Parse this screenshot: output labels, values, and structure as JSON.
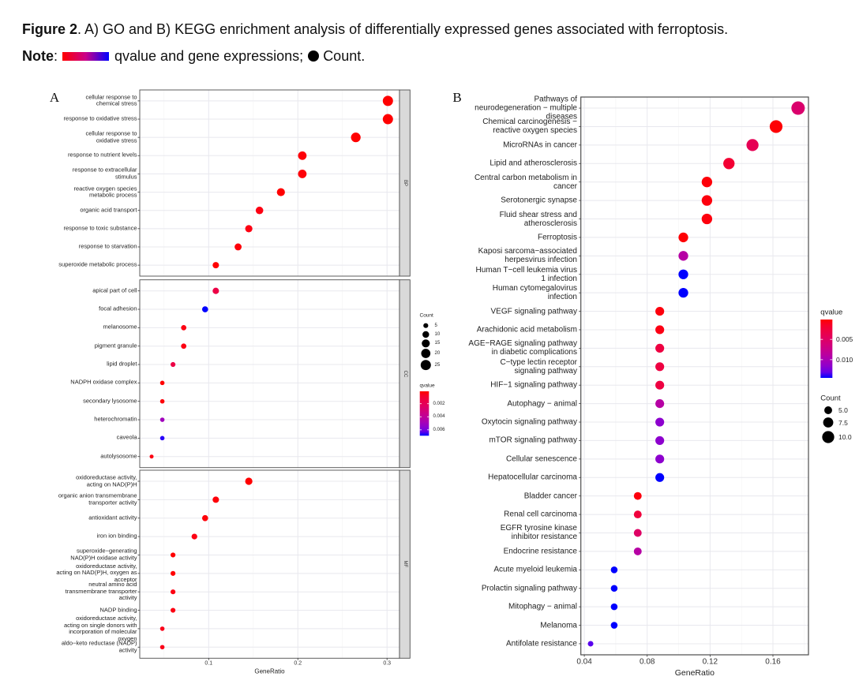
{
  "caption": {
    "figure_label": "Figure 2",
    "title_text": ". A) GO and B) KEGG enrichment analysis of differentially expressed genes associated with ferroptosis.",
    "note_label": "Note",
    "note_colon": ":",
    "note_color_text": "qvalue and gene expressions;",
    "note_count_text": "Count.",
    "note_gradient": [
      "#ff0000",
      "#0000ff"
    ]
  },
  "chart_data": [
    {
      "panel_label": "A",
      "type": "scatter",
      "subtype": "dot plot (faceted)",
      "title": "",
      "xlabel": "GeneRatio",
      "ylabel": "",
      "xlim": [
        0.0227,
        0.314
      ],
      "xticks": [
        0.1,
        0.2,
        0.3
      ],
      "xtick_labels": [
        "0.1",
        "0.2",
        "0.3"
      ],
      "grid": true,
      "facets": [
        {
          "name": "BP",
          "terms": [
            {
              "label": "cellular response to\nchemical stress",
              "gene_ratio": 0.301,
              "count": 25,
              "qvalue": 0.0001
            },
            {
              "label": "response to oxidative stress",
              "gene_ratio": 0.301,
              "count": 25,
              "qvalue": 0.0001
            },
            {
              "label": "cellular response to\noxidative stress",
              "gene_ratio": 0.265,
              "count": 22,
              "qvalue": 0.0001
            },
            {
              "label": "response to nutrient levels",
              "gene_ratio": 0.205,
              "count": 17,
              "qvalue": 0.0002
            },
            {
              "label": "response to extracellular\nstimulus",
              "gene_ratio": 0.205,
              "count": 17,
              "qvalue": 0.0002
            },
            {
              "label": "reactive oxygen species\nmetabolic process",
              "gene_ratio": 0.181,
              "count": 15,
              "qvalue": 0.0001
            },
            {
              "label": "organic acid transport",
              "gene_ratio": 0.157,
              "count": 13,
              "qvalue": 0.0003
            },
            {
              "label": "response to toxic substance",
              "gene_ratio": 0.145,
              "count": 12,
              "qvalue": 0.0003
            },
            {
              "label": "response to starvation",
              "gene_ratio": 0.133,
              "count": 11,
              "qvalue": 0.0002
            },
            {
              "label": "superoxide metabolic process",
              "gene_ratio": 0.108,
              "count": 9,
              "qvalue": 0.0001
            }
          ]
        },
        {
          "name": "CC",
          "terms": [
            {
              "label": "apical part of cell",
              "gene_ratio": 0.108,
              "count": 9,
              "qvalue": 0.0015
            },
            {
              "label": "focal adhesion",
              "gene_ratio": 0.096,
              "count": 8,
              "qvalue": 0.0069
            },
            {
              "label": "melanosome",
              "gene_ratio": 0.072,
              "count": 6,
              "qvalue": 0.0003
            },
            {
              "label": "pigment granule",
              "gene_ratio": 0.072,
              "count": 6,
              "qvalue": 0.0003
            },
            {
              "label": "lipid droplet",
              "gene_ratio": 0.06,
              "count": 5,
              "qvalue": 0.0015
            },
            {
              "label": "NADPH oxidase complex",
              "gene_ratio": 0.048,
              "count": 4,
              "qvalue": 0.0001
            },
            {
              "label": "secondary lysosome",
              "gene_ratio": 0.048,
              "count": 4,
              "qvalue": 0.0002
            },
            {
              "label": "heterochromatin",
              "gene_ratio": 0.048,
              "count": 4,
              "qvalue": 0.005
            },
            {
              "label": "caveola",
              "gene_ratio": 0.048,
              "count": 4,
              "qvalue": 0.0068
            },
            {
              "label": "autolysosome",
              "gene_ratio": 0.036,
              "count": 3,
              "qvalue": 0.0003
            }
          ]
        },
        {
          "name": "MF",
          "terms": [
            {
              "label": "oxidoreductase activity,\nacting on NAD(P)H",
              "gene_ratio": 0.145,
              "count": 12,
              "qvalue": 0.0001
            },
            {
              "label": "organic anion transmembrane\ntransporter activity",
              "gene_ratio": 0.108,
              "count": 9,
              "qvalue": 0.0002
            },
            {
              "label": "antioxidant activity",
              "gene_ratio": 0.096,
              "count": 8,
              "qvalue": 0.0002
            },
            {
              "label": "iron ion binding",
              "gene_ratio": 0.084,
              "count": 7,
              "qvalue": 0.0003
            },
            {
              "label": "superoxide−generating\nNAD(P)H oxidase activity",
              "gene_ratio": 0.06,
              "count": 5,
              "qvalue": 0.0001
            },
            {
              "label": "oxidoreductase activity,\nacting on NAD(P)H, oxygen as\nacceptor",
              "gene_ratio": 0.06,
              "count": 5,
              "qvalue": 0.0001
            },
            {
              "label": "neutral amino acid\ntransmembrane transporter\nactivity",
              "gene_ratio": 0.06,
              "count": 5,
              "qvalue": 0.0003
            },
            {
              "label": "NADP binding",
              "gene_ratio": 0.06,
              "count": 5,
              "qvalue": 0.0003
            },
            {
              "label": "oxidoreductase activity,\nacting on single donors with\nincorporation of molecular\noxygen",
              "gene_ratio": 0.048,
              "count": 4,
              "qvalue": 0.0004
            },
            {
              "label": "aldo−keto reductase (NADP)\nactivity",
              "gene_ratio": 0.048,
              "count": 4,
              "qvalue": 0.0004
            }
          ]
        }
      ],
      "legend": {
        "position": "right",
        "size": {
          "title": "Count",
          "breaks": [
            5,
            10,
            15,
            20,
            25
          ],
          "labels": [
            "5",
            "10",
            "15",
            "20",
            "25"
          ]
        },
        "color": {
          "title": "qvalue",
          "range": [
            0.0001,
            0.0069
          ],
          "ticks": [
            0.002,
            0.004,
            0.006
          ],
          "tick_labels": [
            "0.002",
            "0.004",
            "0.006"
          ],
          "low_color": "#ff0000",
          "high_color": "#0000ff"
        }
      }
    },
    {
      "panel_label": "B",
      "type": "scatter",
      "subtype": "dot plot",
      "title": "",
      "xlabel": "GeneRatio",
      "ylabel": "",
      "xlim": [
        0.0378,
        0.1826
      ],
      "xticks": [
        0.04,
        0.08,
        0.12,
        0.16
      ],
      "xtick_labels": [
        "0.04",
        "0.08",
        "0.12",
        "0.16"
      ],
      "grid": true,
      "terms": [
        {
          "label": "Pathways of\nneurodegeneration − multiple\ndiseases",
          "gene_ratio": 0.176,
          "count": 12,
          "qvalue": 0.0055
        },
        {
          "label": "Chemical carcinogenesis −\nreactive oxygen species",
          "gene_ratio": 0.162,
          "count": 11,
          "qvalue": 0.0002
        },
        {
          "label": "MicroRNAs in cancer",
          "gene_ratio": 0.147,
          "count": 10,
          "qvalue": 0.004
        },
        {
          "label": "Lipid and atherosclerosis",
          "gene_ratio": 0.132,
          "count": 9,
          "qvalue": 0.002
        },
        {
          "label": "Central carbon metabolism in\ncancer",
          "gene_ratio": 0.118,
          "count": 8,
          "qvalue": 0.0003
        },
        {
          "label": "Serotonergic synapse",
          "gene_ratio": 0.118,
          "count": 8,
          "qvalue": 0.0004
        },
        {
          "label": "Fluid shear stress and\natherosclerosis",
          "gene_ratio": 0.118,
          "count": 8,
          "qvalue": 0.0004
        },
        {
          "label": "Ferroptosis",
          "gene_ratio": 0.103,
          "count": 7,
          "qvalue": 0.0002
        },
        {
          "label": "Kaposi sarcoma−associated\nherpesvirus infection",
          "gene_ratio": 0.103,
          "count": 7,
          "qvalue": 0.009
        },
        {
          "label": "Human T−cell leukemia virus\n1 infection",
          "gene_ratio": 0.103,
          "count": 7,
          "qvalue": 0.0145
        },
        {
          "label": "Human cytomegalovirus\ninfection",
          "gene_ratio": 0.103,
          "count": 7,
          "qvalue": 0.0145
        },
        {
          "label": "VEGF signaling pathway",
          "gene_ratio": 0.088,
          "count": 6,
          "qvalue": 0.0004
        },
        {
          "label": "Arachidonic acid metabolism",
          "gene_ratio": 0.088,
          "count": 6,
          "qvalue": 0.0006
        },
        {
          "label": "AGE−RAGE signaling pathway\nin diabetic complications",
          "gene_ratio": 0.088,
          "count": 6,
          "qvalue": 0.0028
        },
        {
          "label": "C−type lectin receptor\nsignaling pathway",
          "gene_ratio": 0.088,
          "count": 6,
          "qvalue": 0.0028
        },
        {
          "label": "HIF−1 signaling pathway",
          "gene_ratio": 0.088,
          "count": 6,
          "qvalue": 0.0028
        },
        {
          "label": "Autophagy − animal",
          "gene_ratio": 0.088,
          "count": 6,
          "qvalue": 0.009
        },
        {
          "label": "Oxytocin signaling pathway",
          "gene_ratio": 0.088,
          "count": 6,
          "qvalue": 0.0116
        },
        {
          "label": "mTOR signaling pathway",
          "gene_ratio": 0.088,
          "count": 6,
          "qvalue": 0.0116
        },
        {
          "label": "Cellular senescence",
          "gene_ratio": 0.088,
          "count": 6,
          "qvalue": 0.0116
        },
        {
          "label": "Hepatocellular carcinoma",
          "gene_ratio": 0.088,
          "count": 6,
          "qvalue": 0.0145
        },
        {
          "label": "Bladder cancer",
          "gene_ratio": 0.074,
          "count": 5,
          "qvalue": 0.0004
        },
        {
          "label": "Renal cell carcinoma",
          "gene_ratio": 0.074,
          "count": 5,
          "qvalue": 0.0025
        },
        {
          "label": "EGFR tyrosine kinase\ninhibitor resistance",
          "gene_ratio": 0.074,
          "count": 5,
          "qvalue": 0.005
        },
        {
          "label": "Endocrine resistance",
          "gene_ratio": 0.074,
          "count": 5,
          "qvalue": 0.009
        },
        {
          "label": "Acute myeloid leukemia",
          "gene_ratio": 0.059,
          "count": 4,
          "qvalue": 0.0145
        },
        {
          "label": "Prolactin signaling pathway",
          "gene_ratio": 0.059,
          "count": 4,
          "qvalue": 0.0145
        },
        {
          "label": "Mitophagy − animal",
          "gene_ratio": 0.059,
          "count": 4,
          "qvalue": 0.0145
        },
        {
          "label": "Melanoma",
          "gene_ratio": 0.059,
          "count": 4,
          "qvalue": 0.0145
        },
        {
          "label": "Antifolate resistance",
          "gene_ratio": 0.044,
          "count": 3,
          "qvalue": 0.0135
        }
      ],
      "legend": {
        "position": "right",
        "color": {
          "title": "qvalue",
          "range": [
            0.0001,
            0.0145
          ],
          "ticks": [
            0.005,
            0.01
          ],
          "tick_labels": [
            "0.005",
            "0.010"
          ],
          "low_color": "#ff0000",
          "high_color": "#0000ff"
        },
        "size": {
          "title": "Count",
          "breaks": [
            5,
            7.5,
            10
          ],
          "labels": [
            "5.0",
            "7.5",
            "10.0"
          ]
        }
      }
    }
  ]
}
